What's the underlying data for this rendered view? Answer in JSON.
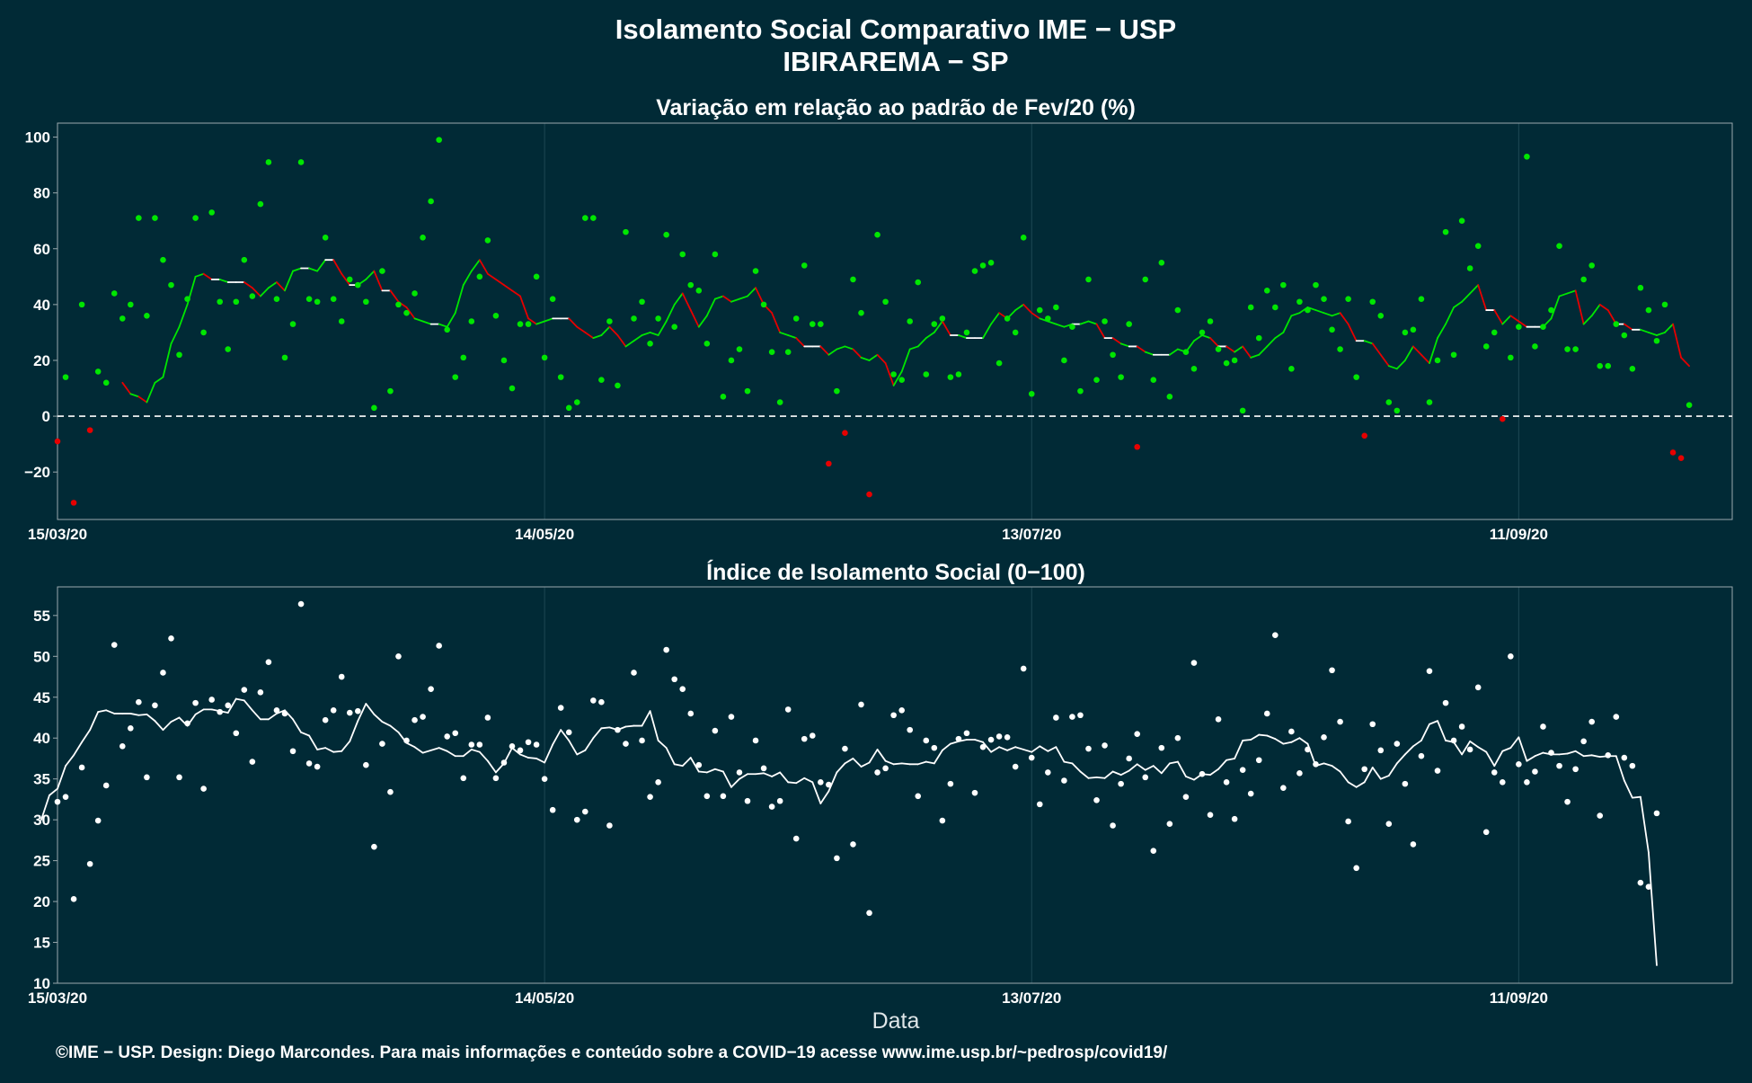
{
  "header": {
    "title": "Isolamento Social Comparativo IME − USP",
    "subtitle": "IBIRAREMA − SP"
  },
  "footer": {
    "credit": "©IME − USP. Design: Diego Marcondes. Para mais informações e conteúdo sobre a COVID−19 acesse www.ime.usp.br/~pedrosp/covid19/"
  },
  "colors": {
    "background": "#012a36",
    "positive": "#00e600",
    "negative": "#e60000",
    "index": "#ffffff",
    "grid": "#1e4753",
    "frame": "#9aa8ad"
  },
  "chart_data": [
    {
      "type": "scatter",
      "title": "Variação em relação ao padrão de Fev/20 (%)",
      "xlabel": "",
      "ylabel": "",
      "x_start": "15/03/20",
      "x_ticks": [
        "15/03/20",
        "14/05/20",
        "13/07/20",
        "11/09/20"
      ],
      "y_ticks": [
        100,
        80,
        60,
        40,
        20,
        0,
        -20
      ],
      "ylim": [
        -37,
        105
      ],
      "reference_line": 0,
      "grid": true,
      "series": [
        {
          "kind": "daily",
          "values": [
            -9,
            14,
            -31,
            40,
            -5,
            16,
            12,
            44,
            35,
            40,
            71,
            36,
            71,
            56,
            47,
            22,
            42,
            71,
            30,
            73,
            41,
            24,
            41,
            56,
            43,
            76,
            91,
            42,
            21,
            33,
            91,
            42,
            41,
            64,
            42,
            34,
            49,
            47,
            41,
            3,
            52,
            9,
            40,
            37,
            44,
            64,
            77,
            99,
            31,
            14,
            21,
            34,
            50,
            63,
            36,
            20,
            10,
            33,
            33,
            50,
            21,
            42,
            14,
            3,
            5,
            71,
            71,
            13,
            34,
            11,
            66,
            35,
            41,
            26,
            35,
            65,
            32,
            58,
            47,
            45,
            26,
            58,
            7,
            20,
            24,
            9,
            52,
            40,
            23,
            5,
            23,
            35,
            54,
            33,
            33,
            -17,
            9,
            -6,
            49,
            37,
            -28,
            65,
            41,
            15,
            13,
            34,
            48,
            15,
            33,
            35,
            14,
            15,
            30,
            52,
            54,
            55,
            19,
            35,
            30,
            64,
            8,
            38,
            35,
            39,
            20,
            32,
            9,
            49,
            13,
            34,
            22,
            14,
            33,
            -11,
            49,
            13,
            55,
            7,
            38,
            23,
            17,
            30,
            34,
            24,
            19,
            20,
            2,
            39,
            28,
            45,
            39,
            47,
            17,
            41,
            38,
            47,
            42,
            31,
            24,
            42,
            14,
            -7,
            41,
            36,
            5,
            2,
            30,
            31,
            42,
            5,
            20,
            66,
            22,
            70,
            53,
            61,
            25,
            30,
            -1,
            21,
            32,
            93,
            25,
            32,
            38,
            61,
            24,
            24,
            49,
            54,
            18,
            18,
            33,
            29,
            17,
            46,
            38,
            27,
            40,
            -13,
            -15,
            4
          ]
        },
        {
          "kind": "rolling_mean",
          "values": [
            12,
            8,
            7,
            5,
            12,
            14,
            26,
            32,
            40,
            50,
            51,
            49,
            49,
            48,
            48,
            48,
            46,
            43,
            46,
            48,
            45,
            52,
            53,
            53,
            52,
            56,
            56,
            51,
            47,
            47,
            49,
            52,
            45,
            45,
            41,
            39,
            35,
            34,
            33,
            33,
            32,
            37,
            47,
            52,
            56,
            51,
            49,
            47,
            45,
            43,
            35,
            33,
            34,
            35,
            35,
            35,
            32,
            30,
            28,
            29,
            32,
            29,
            25,
            27,
            29,
            30,
            29,
            34,
            40,
            44,
            38,
            32,
            36,
            42,
            43,
            41,
            42,
            43,
            46,
            40,
            37,
            30,
            29,
            28,
            25,
            25,
            25,
            22,
            24,
            25,
            24,
            21,
            20,
            22,
            19,
            11,
            16,
            24,
            25,
            28,
            30,
            34,
            29,
            29,
            28,
            28,
            28,
            33,
            37,
            35,
            38,
            40,
            37,
            35,
            34,
            33,
            32,
            33,
            33,
            34,
            33,
            28,
            28,
            26,
            25,
            25,
            23,
            22,
            22,
            22,
            24,
            23,
            27,
            29,
            28,
            25,
            25,
            23,
            25,
            21,
            22,
            25,
            28,
            30,
            36,
            37,
            39,
            38,
            37,
            36,
            37,
            33,
            27,
            27,
            26,
            22,
            18,
            17,
            20,
            25,
            22,
            19,
            28,
            33,
            39,
            41,
            44,
            47,
            38,
            38,
            33,
            36,
            34,
            32,
            32,
            32,
            35,
            43,
            44,
            45,
            33,
            36,
            40,
            38,
            33,
            33,
            31,
            31,
            30,
            29,
            30,
            33,
            21,
            18
          ]
        }
      ]
    },
    {
      "type": "scatter",
      "title": "Índice de Isolamento Social (0−100)",
      "xlabel": "Data",
      "ylabel": "",
      "x_start": "15/03/20",
      "x_ticks": [
        "15/03/20",
        "14/05/20",
        "13/07/20",
        "11/09/20"
      ],
      "y_ticks": [
        55,
        50,
        45,
        40,
        35,
        30,
        25,
        20,
        15,
        10
      ],
      "ylim": [
        10,
        58.5
      ],
      "grid": true,
      "series": [
        {
          "kind": "daily",
          "values": [
            32.2,
            32.8,
            20.3,
            36.4,
            24.6,
            29.9,
            34.2,
            51.4,
            39.0,
            41.2,
            44.4,
            35.2,
            44.0,
            48.0,
            52.2,
            35.2,
            41.8,
            44.3,
            33.8,
            44.7,
            43.2,
            44.0,
            40.6,
            45.9,
            37.1,
            45.6,
            49.3,
            43.4,
            43.0,
            38.4,
            56.4,
            36.9,
            36.5,
            42.2,
            43.4,
            47.5,
            43.1,
            43.3,
            36.7,
            26.7,
            39.3,
            33.4,
            50.0,
            39.7,
            42.2,
            42.6,
            46.0,
            51.3,
            40.2,
            40.6,
            35.1,
            39.2,
            39.2,
            42.5,
            35.1,
            37.0,
            39.0,
            38.5,
            39.5,
            39.2,
            35.0,
            31.2,
            43.7,
            40.7,
            30.0,
            31.0,
            44.6,
            44.4,
            29.3,
            41.0,
            39.3,
            48.0,
            39.7,
            32.8,
            34.6,
            50.8,
            47.2,
            46.0,
            43.0,
            36.7,
            32.9,
            40.9,
            32.9,
            42.6,
            35.8,
            32.3,
            39.7,
            36.3,
            31.6,
            32.3,
            43.5,
            27.7,
            39.9,
            40.3,
            34.6,
            34.3,
            25.3,
            38.7,
            27.0,
            44.1,
            18.6,
            35.8,
            36.3,
            42.8,
            43.4,
            41.0,
            32.9,
            39.7,
            38.8,
            29.9,
            34.4,
            39.9,
            40.6,
            33.3,
            38.9,
            39.8,
            40.2,
            40.1,
            36.5,
            48.5,
            37.6,
            31.9,
            35.8,
            42.5,
            34.8,
            42.6,
            42.8,
            38.7,
            32.4,
            39.1,
            29.3,
            34.4,
            37.5,
            40.5,
            35.2,
            26.2,
            38.8,
            29.5,
            40.0,
            32.8,
            49.2,
            35.6,
            30.6,
            42.3,
            34.6,
            30.1,
            36.1,
            33.2,
            37.3,
            43.0,
            52.6,
            33.9,
            40.8,
            35.7,
            38.6,
            36.8,
            40.1,
            48.3,
            42.0,
            29.8,
            24.1,
            36.2,
            41.7,
            38.5,
            29.5,
            39.3,
            34.4,
            27.0,
            37.8,
            48.2,
            36.0,
            44.3,
            39.7,
            41.4,
            38.6,
            46.2,
            28.5,
            35.8,
            34.6,
            50.0,
            36.8,
            34.6,
            35.9,
            41.4,
            38.2,
            36.6,
            32.2,
            36.2,
            39.6,
            42.0,
            30.5,
            37.9,
            42.6,
            37.6,
            36.6,
            22.3,
            21.8,
            30.8
          ]
        },
        {
          "kind": "rolling_mean",
          "values": [
            30.0,
            33.0,
            33.8,
            36.6,
            37.9,
            39.5,
            41.0,
            43.2,
            43.4,
            43.0,
            43.0,
            43.0,
            42.8,
            42.9,
            42.1,
            41.0,
            42.0,
            42.5,
            41.5,
            42.9,
            43.5,
            43.5,
            43.3,
            43.1,
            44.8,
            44.6,
            43.4,
            42.3,
            42.3,
            43.0,
            43.4,
            42.3,
            40.7,
            40.3,
            38.6,
            38.8,
            38.3,
            38.4,
            39.6,
            42.1,
            44.2,
            42.9,
            42.0,
            41.5,
            40.7,
            39.4,
            38.9,
            38.2,
            38.5,
            38.8,
            38.4,
            37.8,
            37.8,
            38.6,
            38.3,
            37.2,
            35.8,
            36.9,
            38.8,
            38.0,
            37.6,
            37.5,
            37.0,
            39.2,
            41.0,
            39.7,
            38.0,
            38.5,
            40.0,
            41.2,
            41.3,
            41.0,
            41.4,
            41.5,
            41.5,
            43.3,
            39.7,
            38.8,
            36.8,
            36.6,
            37.6,
            35.9,
            35.8,
            36.2,
            35.9,
            34.0,
            35.0,
            35.6,
            35.6,
            35.7,
            35.3,
            35.8,
            34.6,
            34.5,
            35.1,
            34.6,
            32.0,
            33.5,
            35.8,
            36.9,
            37.5,
            36.5,
            37.0,
            38.6,
            37.2,
            36.8,
            36.9,
            36.8,
            36.8,
            37.1,
            36.9,
            38.5,
            39.3,
            39.6,
            39.8,
            39.8,
            39.5,
            38.3,
            38.9,
            38.5,
            38.9,
            38.6,
            38.3,
            39.0,
            38.4,
            38.9,
            37.1,
            36.9,
            35.9,
            35.1,
            35.2,
            35.1,
            35.9,
            35.5,
            36.0,
            36.8,
            36.1,
            36.6,
            35.7,
            36.9,
            37.1,
            35.3,
            34.9,
            35.6,
            35.5,
            36.2,
            37.3,
            37.5,
            39.7,
            39.8,
            40.4,
            40.3,
            39.9,
            39.3,
            39.5,
            40.0,
            39.3,
            36.6,
            36.9,
            36.6,
            35.9,
            34.6,
            34.0,
            34.6,
            36.4,
            35.0,
            35.4,
            36.9,
            38.0,
            39.0,
            39.7,
            41.7,
            42.1,
            39.7,
            39.5,
            38.0,
            39.6,
            38.9,
            38.3,
            36.6,
            38.4,
            38.8,
            40.1,
            37.2,
            37.8,
            38.2,
            38.0,
            38.0,
            38.1,
            38.4,
            37.8,
            37.9,
            37.7,
            37.8,
            37.8,
            34.8,
            32.7,
            32.8,
            26.0,
            12.2
          ]
        }
      ]
    }
  ]
}
